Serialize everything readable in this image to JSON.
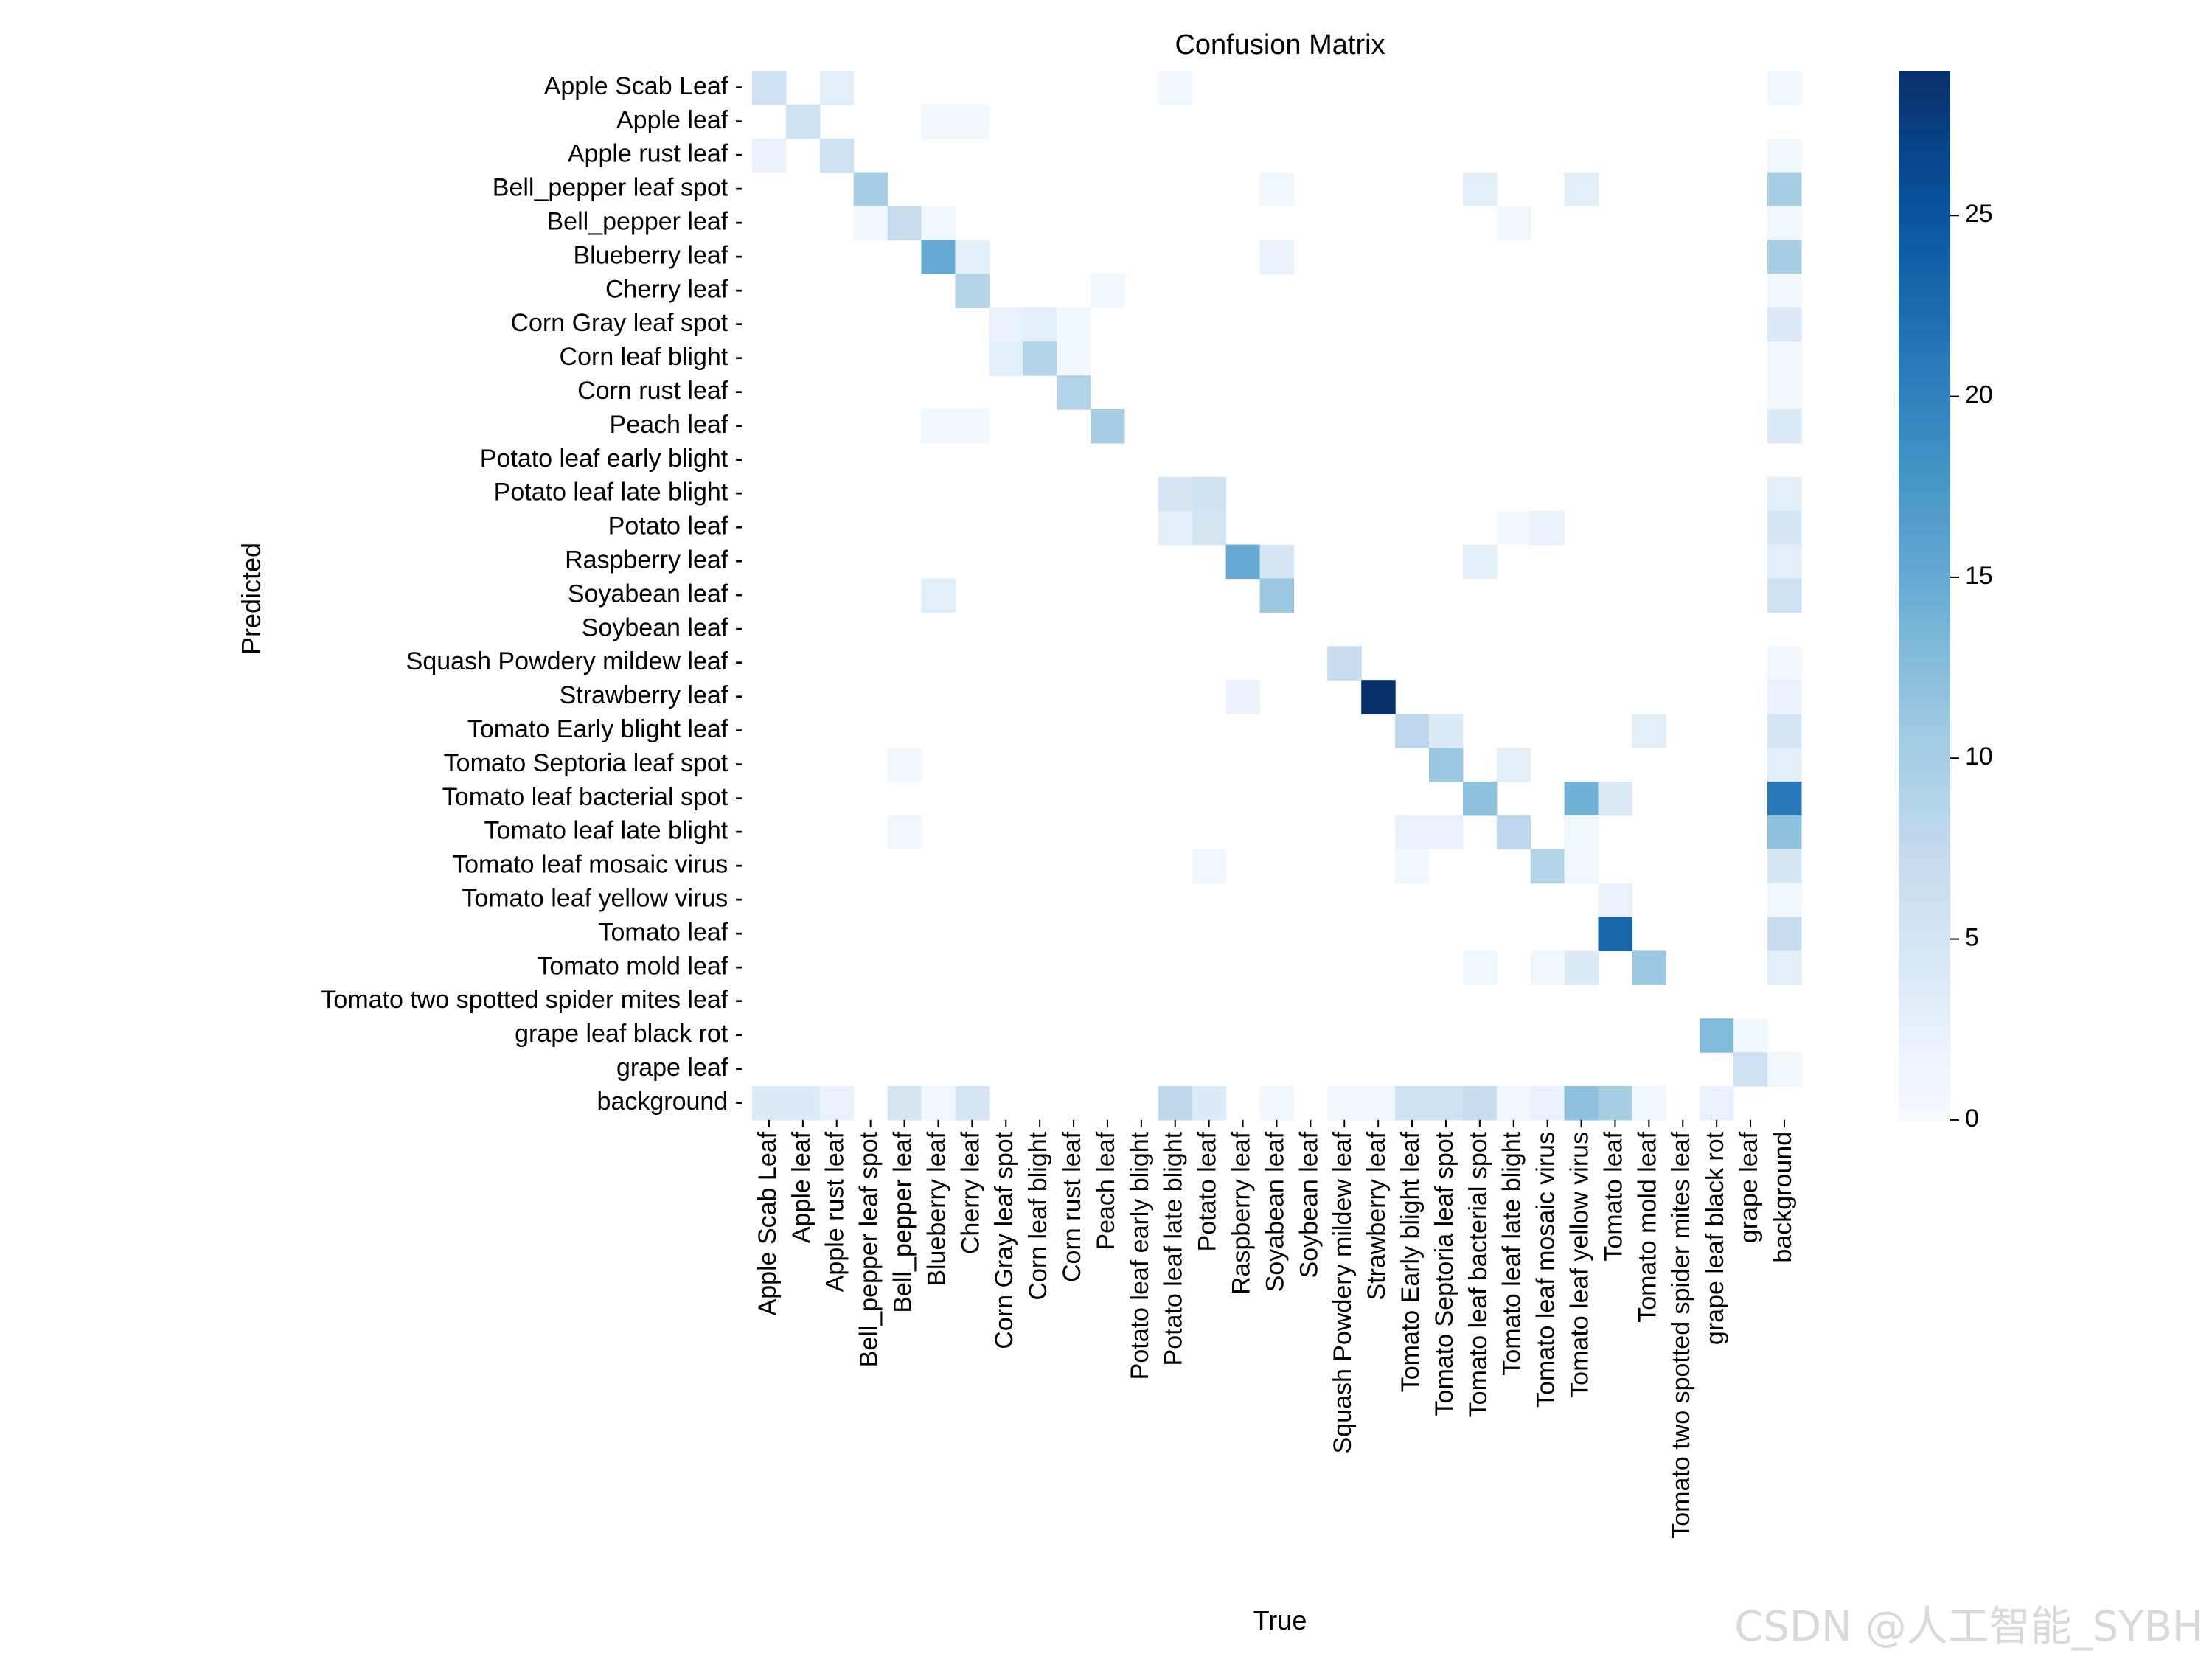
{
  "chart_data": {
    "type": "heatmap",
    "title": "Confusion Matrix",
    "xlabel": "True",
    "ylabel": "Predicted",
    "colormap": "Blues",
    "colorbar": {
      "min": 0,
      "max": 29,
      "ticks": [
        0,
        5,
        10,
        15,
        20,
        25
      ]
    },
    "labels": [
      "Apple Scab Leaf",
      "Apple leaf",
      "Apple rust leaf",
      "Bell_pepper leaf spot",
      "Bell_pepper leaf",
      "Blueberry leaf",
      "Cherry leaf",
      "Corn Gray leaf spot",
      "Corn leaf blight",
      "Corn rust leaf",
      "Peach leaf",
      "Potato leaf early blight",
      "Potato leaf late blight",
      "Potato leaf",
      "Raspberry leaf",
      "Soyabean leaf",
      "Soybean leaf",
      "Squash Powdery mildew leaf",
      "Strawberry leaf",
      "Tomato Early blight leaf",
      "Tomato Septoria leaf spot",
      "Tomato leaf bacterial spot",
      "Tomato leaf late blight",
      "Tomato leaf mosaic virus",
      "Tomato leaf yellow virus",
      "Tomato leaf",
      "Tomato mold leaf",
      "Tomato two spotted spider mites leaf",
      "grape leaf black rot",
      "grape leaf",
      "background"
    ],
    "cells": [
      [
        0,
        0,
        6
      ],
      [
        0,
        2,
        3
      ],
      [
        0,
        12,
        1
      ],
      [
        0,
        30,
        1
      ],
      [
        1,
        1,
        6
      ],
      [
        1,
        5,
        1
      ],
      [
        1,
        6,
        1
      ],
      [
        2,
        0,
        2
      ],
      [
        2,
        2,
        6
      ],
      [
        2,
        30,
        1
      ],
      [
        3,
        3,
        10
      ],
      [
        3,
        15,
        1
      ],
      [
        3,
        21,
        3
      ],
      [
        3,
        24,
        3
      ],
      [
        3,
        30,
        10
      ],
      [
        4,
        3,
        1
      ],
      [
        4,
        4,
        7
      ],
      [
        4,
        5,
        1
      ],
      [
        4,
        22,
        1
      ],
      [
        4,
        30,
        1
      ],
      [
        5,
        5,
        15
      ],
      [
        5,
        6,
        3
      ],
      [
        5,
        15,
        2
      ],
      [
        5,
        30,
        10
      ],
      [
        6,
        6,
        9
      ],
      [
        6,
        10,
        1
      ],
      [
        6,
        30,
        1
      ],
      [
        7,
        7,
        2
      ],
      [
        7,
        8,
        3
      ],
      [
        7,
        9,
        1
      ],
      [
        7,
        30,
        4
      ],
      [
        8,
        7,
        3
      ],
      [
        8,
        8,
        9
      ],
      [
        8,
        9,
        1
      ],
      [
        8,
        30,
        1
      ],
      [
        9,
        9,
        9
      ],
      [
        9,
        30,
        1
      ],
      [
        10,
        5,
        1
      ],
      [
        10,
        6,
        1
      ],
      [
        10,
        10,
        10
      ],
      [
        10,
        30,
        4
      ],
      [
        12,
        12,
        5
      ],
      [
        12,
        13,
        6
      ],
      [
        12,
        30,
        3
      ],
      [
        13,
        12,
        3
      ],
      [
        13,
        13,
        5
      ],
      [
        13,
        22,
        1
      ],
      [
        13,
        23,
        2
      ],
      [
        13,
        30,
        5
      ],
      [
        14,
        14,
        15
      ],
      [
        14,
        15,
        5
      ],
      [
        14,
        21,
        3
      ],
      [
        14,
        30,
        3
      ],
      [
        15,
        5,
        3
      ],
      [
        15,
        15,
        11
      ],
      [
        15,
        30,
        6
      ],
      [
        17,
        17,
        7
      ],
      [
        17,
        30,
        1
      ],
      [
        18,
        14,
        2
      ],
      [
        18,
        18,
        29
      ],
      [
        18,
        30,
        2
      ],
      [
        19,
        19,
        8
      ],
      [
        19,
        20,
        4
      ],
      [
        19,
        26,
        3
      ],
      [
        19,
        30,
        5
      ],
      [
        20,
        4,
        1
      ],
      [
        20,
        20,
        11
      ],
      [
        20,
        22,
        3
      ],
      [
        20,
        30,
        3
      ],
      [
        21,
        21,
        12
      ],
      [
        21,
        24,
        14
      ],
      [
        21,
        25,
        4
      ],
      [
        21,
        30,
        21
      ],
      [
        22,
        4,
        1
      ],
      [
        22,
        19,
        2
      ],
      [
        22,
        20,
        2
      ],
      [
        22,
        22,
        8
      ],
      [
        22,
        24,
        1
      ],
      [
        22,
        30,
        12
      ],
      [
        23,
        13,
        1
      ],
      [
        23,
        19,
        1
      ],
      [
        23,
        23,
        9
      ],
      [
        23,
        24,
        1
      ],
      [
        23,
        30,
        5
      ],
      [
        24,
        25,
        2
      ],
      [
        24,
        30,
        1
      ],
      [
        25,
        25,
        23
      ],
      [
        25,
        30,
        7
      ],
      [
        26,
        21,
        1
      ],
      [
        26,
        23,
        1
      ],
      [
        26,
        24,
        4
      ],
      [
        26,
        26,
        11
      ],
      [
        26,
        30,
        3
      ],
      [
        28,
        28,
        13
      ],
      [
        28,
        29,
        1
      ],
      [
        29,
        29,
        6
      ],
      [
        29,
        30,
        1
      ],
      [
        30,
        0,
        4
      ],
      [
        30,
        1,
        4
      ],
      [
        30,
        2,
        2
      ],
      [
        30,
        4,
        5
      ],
      [
        30,
        5,
        1
      ],
      [
        30,
        6,
        5
      ],
      [
        30,
        12,
        8
      ],
      [
        30,
        13,
        4
      ],
      [
        30,
        15,
        1
      ],
      [
        30,
        17,
        1
      ],
      [
        30,
        18,
        1
      ],
      [
        30,
        19,
        6
      ],
      [
        30,
        20,
        6
      ],
      [
        30,
        21,
        7
      ],
      [
        30,
        22,
        1
      ],
      [
        30,
        23,
        2
      ],
      [
        30,
        24,
        12
      ],
      [
        30,
        25,
        10
      ],
      [
        30,
        26,
        1
      ],
      [
        30,
        28,
        2
      ]
    ]
  },
  "watermark": "CSDN @人工智能_SYBH"
}
